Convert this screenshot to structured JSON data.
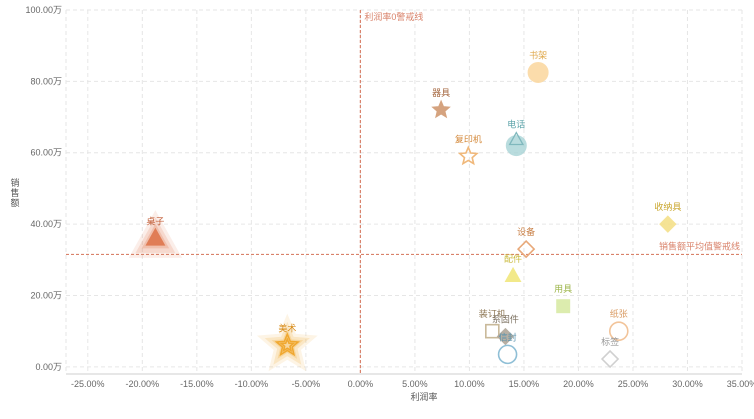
{
  "chart_data": {
    "type": "scatter",
    "xlabel": "利润率",
    "ylabel": "销售额",
    "xlim": [
      -0.27,
      0.35
    ],
    "ylim": [
      -2,
      100
    ],
    "x_ticks": [
      -0.25,
      -0.2,
      -0.15,
      -0.1,
      -0.05,
      0,
      0.05,
      0.1,
      0.15,
      0.2,
      0.25,
      0.3,
      0.35
    ],
    "x_tick_labels": [
      "-25.00%",
      "-20.00%",
      "-15.00%",
      "-10.00%",
      "-5.00%",
      "0.00%",
      "5.00%",
      "10.00%",
      "15.00%",
      "20.00%",
      "25.00%",
      "30.00%",
      "35.00%"
    ],
    "y_ticks": [
      0,
      20,
      40,
      60,
      80,
      100
    ],
    "y_tick_labels": [
      "0.00万",
      "20.00万",
      "40.00万",
      "60.00万",
      "80.00万",
      "100.00万"
    ],
    "grid": true,
    "reference_lines": [
      {
        "axis": "x",
        "value": 0,
        "label": "利润率0警戒线",
        "color": "#d9826a"
      },
      {
        "axis": "y",
        "value": 31.5,
        "label": "销售额平均值警戒线",
        "color": "#d9826a"
      }
    ],
    "points": [
      {
        "label": "书架",
        "x": 0.163,
        "y": 82.5,
        "shape": "circle",
        "filled": true,
        "color": "#fbd9a3",
        "label_color": "#e0a94c",
        "halo": false
      },
      {
        "label": "器具",
        "x": 0.074,
        "y": 72,
        "shape": "star",
        "filled": true,
        "color": "#d19a72",
        "label_color": "#a5673f",
        "halo": false
      },
      {
        "label": "电话",
        "x": 0.143,
        "y": 62,
        "shape": "circle+triangle",
        "filled": true,
        "color": "#a8d4d6",
        "label_color": "#5aa2a8",
        "halo": false
      },
      {
        "label": "复印机",
        "x": 0.099,
        "y": 59,
        "shape": "star",
        "filled": false,
        "color": "#f0b87a",
        "label_color": "#d48a3c",
        "halo": false
      },
      {
        "label": "收纳具",
        "x": 0.282,
        "y": 40,
        "shape": "diamond",
        "filled": true,
        "color": "#f5e08a",
        "label_color": "#c9a62c",
        "halo": false
      },
      {
        "label": "桌子",
        "x": -0.188,
        "y": 36,
        "shape": "triangle",
        "filled": true,
        "color": "#e07a52",
        "label_color": "#c15b34",
        "halo": true
      },
      {
        "label": "设备",
        "x": 0.152,
        "y": 33,
        "shape": "diamond",
        "filled": false,
        "color": "#e8a878",
        "label_color": "#c98148",
        "halo": false
      },
      {
        "label": "配件",
        "x": 0.14,
        "y": 25.5,
        "shape": "triangle",
        "filled": true,
        "color": "#f1e77e",
        "label_color": "#c9b93a",
        "halo": false
      },
      {
        "label": "用具",
        "x": 0.186,
        "y": 17,
        "shape": "square",
        "filled": true,
        "color": "#d9eaa6",
        "label_color": "#9cb54a",
        "halo": false
      },
      {
        "label": "装订机",
        "x": 0.121,
        "y": 10,
        "shape": "square",
        "filled": false,
        "color": "#c9b99a",
        "label_color": "#8c7552",
        "halo": false
      },
      {
        "label": "系固件",
        "x": 0.133,
        "y": 8.5,
        "shape": "diamond",
        "filled": true,
        "color": "#b0a79a",
        "label_color": "#7d7262",
        "halo": false
      },
      {
        "label": "信封",
        "x": 0.135,
        "y": 3.5,
        "shape": "circle",
        "filled": false,
        "color": "#8fbfd6",
        "label_color": "#5b93ad",
        "halo": false
      },
      {
        "label": "纸张",
        "x": 0.237,
        "y": 10,
        "shape": "circle",
        "filled": false,
        "color": "#f2c49a",
        "label_color": "#d99a62",
        "halo": false
      },
      {
        "label": "标签",
        "x": 0.229,
        "y": 2.2,
        "shape": "diamond",
        "filled": false,
        "color": "#d0d0d0",
        "label_color": "#9a9a9a",
        "halo": false
      },
      {
        "label": "美术",
        "x": -0.067,
        "y": 6,
        "shape": "star",
        "filled": false,
        "color": "#f0a830",
        "label_color": "#d88c1a",
        "halo": true
      }
    ]
  }
}
